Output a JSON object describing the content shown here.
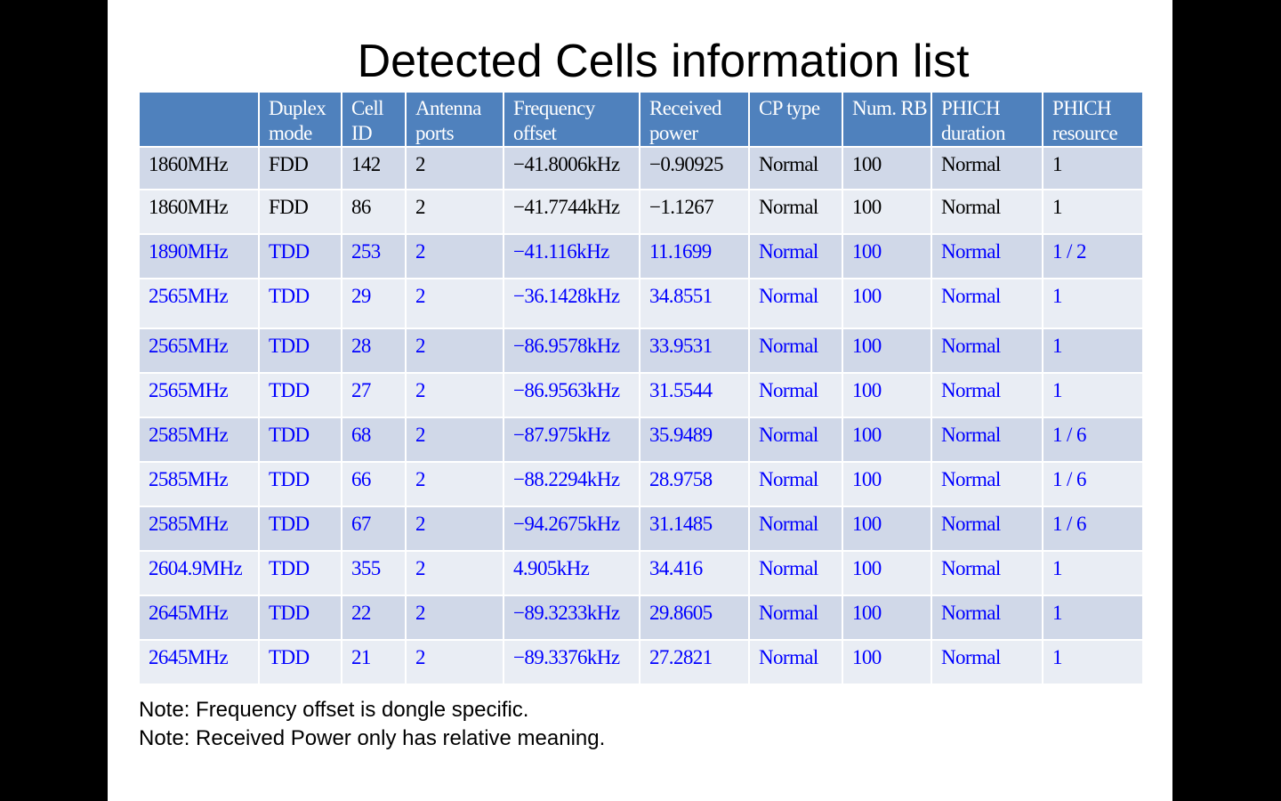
{
  "title": "Detected Cells information list",
  "columns": [
    "",
    "Duplex mode",
    "Cell ID",
    "Antenna ports",
    "Frequency offset",
    "Received power",
    "CP type",
    "Num. RB",
    "PHICH duration",
    "PHICH resource"
  ],
  "rows": [
    {
      "color": "#000000",
      "cells": [
        "1860MHz",
        "FDD",
        "142",
        "2",
        "−41.8006kHz",
        "−0.90925",
        "Normal",
        "100",
        "Normal",
        "1"
      ]
    },
    {
      "color": "#000000",
      "cells": [
        "1860MHz",
        "FDD",
        "86",
        "2",
        "−41.7744kHz",
        "−1.1267",
        "Normal",
        "100",
        "Normal",
        "1"
      ]
    },
    {
      "color": "#0000ff",
      "cells": [
        "1890MHz",
        "TDD",
        "253",
        "2",
        "−41.116kHz",
        "11.1699",
        "Normal",
        "100",
        "Normal",
        "1 / 2"
      ]
    },
    {
      "color": "#0000ff",
      "cells": [
        "2565MHz",
        "TDD",
        "29",
        "2",
        "−36.1428kHz",
        "34.8551",
        "Normal",
        "100",
        "Normal",
        "1"
      ]
    },
    {
      "color": "#0000ff",
      "cells": [
        "2565MHz",
        "TDD",
        "28",
        "2",
        "−86.9578kHz",
        "33.9531",
        "Normal",
        "100",
        "Normal",
        "1"
      ]
    },
    {
      "color": "#0000ff",
      "cells": [
        "2565MHz",
        "TDD",
        "27",
        "2",
        "−86.9563kHz",
        "31.5544",
        "Normal",
        "100",
        "Normal",
        "1"
      ]
    },
    {
      "color": "#0000ff",
      "cells": [
        "2585MHz",
        "TDD",
        "68",
        "2",
        "−87.975kHz",
        "35.9489",
        "Normal",
        "100",
        "Normal",
        "1 / 6"
      ]
    },
    {
      "color": "#0000ff",
      "cells": [
        "2585MHz",
        "TDD",
        "66",
        "2",
        "−88.2294kHz",
        "28.9758",
        "Normal",
        "100",
        "Normal",
        "1 / 6"
      ]
    },
    {
      "color": "#0000ff",
      "cells": [
        "2585MHz",
        "TDD",
        "67",
        "2",
        "−94.2675kHz",
        "31.1485",
        "Normal",
        "100",
        "Normal",
        "1 / 6"
      ]
    },
    {
      "color": "#0000ff",
      "cells": [
        "2604.9MHz",
        "TDD",
        "355",
        "2",
        "4.905kHz",
        "34.416",
        "Normal",
        "100",
        "Normal",
        "1"
      ]
    },
    {
      "color": "#0000ff",
      "cells": [
        "2645MHz",
        "TDD",
        "22",
        "2",
        "−89.3233kHz",
        "29.8605",
        "Normal",
        "100",
        "Normal",
        "1"
      ]
    },
    {
      "color": "#0000ff",
      "cells": [
        "2645MHz",
        "TDD",
        "21",
        "2",
        "−89.3376kHz",
        "27.2821",
        "Normal",
        "100",
        "Normal",
        "1"
      ]
    }
  ],
  "notes": [
    "Note: Frequency offset is dongle specific.",
    "Note: Received Power only has relative meaning."
  ],
  "colors": {
    "header_bg": "#4f81bd",
    "row_odd_bg": "#d0d8e8",
    "row_even_bg": "#e9edf4",
    "text_black": "#000000",
    "text_blue": "#0000ff"
  }
}
